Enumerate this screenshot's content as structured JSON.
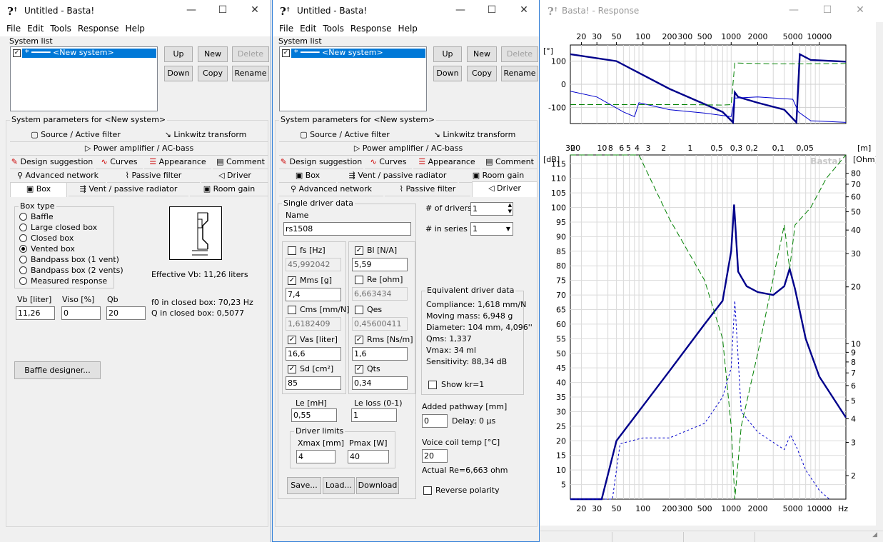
{
  "win1": {
    "title": "Untitled - Basta!",
    "menu": [
      "File",
      "Edit",
      "Tools",
      "Response",
      "Help"
    ],
    "system_list_label": "System list",
    "system_item": "<New system>",
    "buttons": {
      "up": "Up",
      "new": "New",
      "delete": "Delete",
      "down": "Down",
      "copy": "Copy",
      "rename": "Rename"
    },
    "params_label": "System parameters for <New system>",
    "tabs_row1": [
      "Source / Active filter",
      "Linkwitz transform"
    ],
    "tabs_row2": [
      "Power amplifier / AC-bass"
    ],
    "tabs_row3": [
      "Design suggestion",
      "Curves",
      "Appearance",
      "Comment"
    ],
    "tabs_row4": [
      "Advanced network",
      "Passive filter",
      "Driver"
    ],
    "tabs_row5": [
      "Box",
      "Vent / passive radiator",
      "Room gain"
    ],
    "box_type_label": "Box type",
    "box_types": [
      "Baffle",
      "Large closed box",
      "Closed box",
      "Vented box",
      "Bandpass box (1 vent)",
      "Bandpass box (2 vents)",
      "Measured response"
    ],
    "selected_box_type": "Vented box",
    "effective_vb": "Effective Vb: 11,26 liters",
    "vb_label": "Vb [liter]",
    "vb": "11,26",
    "viso_label": "Viso [%]",
    "viso": "0",
    "qb_label": "Qb",
    "qb": "20",
    "f0_closed": "f0 in closed box: 70,23 Hz",
    "q_closed": "Q  in closed box: 0,5077",
    "baffle_designer": "Baffle designer..."
  },
  "win2": {
    "title": "Untitled - Basta!",
    "menu": [
      "File",
      "Edit",
      "Tools",
      "Response",
      "Help"
    ],
    "system_list_label": "System list",
    "system_item": "<New system>",
    "buttons": {
      "up": "Up",
      "new": "New",
      "delete": "Delete",
      "down": "Down",
      "copy": "Copy",
      "rename": "Rename"
    },
    "params_label": "System parameters for <New system>",
    "tabs_row1": [
      "Source / Active filter",
      "Linkwitz transform"
    ],
    "tabs_row2": [
      "Power amplifier / AC-bass"
    ],
    "tabs_row3": [
      "Design suggestion",
      "Curves",
      "Appearance",
      "Comment"
    ],
    "tabs_row4": [
      "Box",
      "Vent / passive radiator",
      "Room gain"
    ],
    "tabs_row5": [
      "Advanced network",
      "Passive filter",
      "Driver"
    ],
    "single_driver_label": "Single driver data",
    "name_label": "Name",
    "name": "rs1508",
    "left_params": [
      {
        "label": "fs [Hz]",
        "value": "45,992042",
        "checked": false
      },
      {
        "label": "Mms [g]",
        "value": "7,4",
        "checked": true
      },
      {
        "label": "Cms [mm/N]",
        "value": "1,6182409",
        "checked": false
      },
      {
        "label": "Vas [liter]",
        "value": "16,6",
        "checked": true
      },
      {
        "label": "Sd [cm²]",
        "value": "85",
        "checked": true
      }
    ],
    "right_params": [
      {
        "label": "Bl [N/A]",
        "value": "5,59",
        "checked": true
      },
      {
        "label": "Re [ohm]",
        "value": "6,663434",
        "checked": false
      },
      {
        "label": "Qes",
        "value": "0,45600411",
        "checked": false
      },
      {
        "label": "Rms [Ns/m]",
        "value": "1,6",
        "checked": true
      },
      {
        "label": "Qts",
        "value": "0,34",
        "checked": true
      }
    ],
    "le_label": "Le [mH]",
    "le": "0,55",
    "leloss_label": "Le loss (0-1)",
    "leloss": "1",
    "limits_label": "Driver limits",
    "xmax_label": "Xmax [mm]",
    "xmax": "4",
    "pmax_label": "Pmax [W]",
    "pmax": "40",
    "save": "Save...",
    "load": "Load...",
    "download": "Download",
    "num_drivers_label": "# of drivers",
    "num_drivers": "1",
    "in_series_label": "# in series",
    "in_series": "1",
    "equiv_label": "Equivalent driver data",
    "equiv": [
      "Compliance: 1,618 mm/N",
      "Moving mass: 6,948 g",
      "Diameter: 104 mm, 4,096''",
      "Qms: 1,337",
      "Vmax: 34 ml",
      "Sensitivity: 88,34 dB"
    ],
    "show_kr": "Show kr=1",
    "added_pathway_label": "Added pathway [mm]",
    "added_pathway": "0",
    "delay": "Delay: 0 µs",
    "voice_coil_label": "Voice coil temp [°C]",
    "voice_coil": "20",
    "actual_re": "Actual Re=6,663 ohm",
    "reverse_polarity": "Reverse polarity"
  },
  "win3": {
    "title": "Basta! - Response",
    "watermark": "Basta!",
    "top_freq_ticks": [
      "20",
      "30",
      "50",
      "100",
      "200",
      "300",
      "500",
      "1000",
      "2000",
      "5000",
      "10000"
    ],
    "phase_unit": "[°]",
    "phase_ticks": [
      "100",
      "0",
      "-100"
    ],
    "dist_ticks": [
      "30",
      "20",
      "10",
      "8",
      "6",
      "5",
      "4",
      "3",
      "2",
      "1",
      "0,5",
      "0,3",
      "0,2",
      "0,1",
      "0,05"
    ],
    "dist_unit": "[m]",
    "db_unit": "[dB]",
    "db_ticks": [
      "115",
      "110",
      "105",
      "100",
      "95",
      "90",
      "85",
      "80",
      "75",
      "70",
      "65",
      "60",
      "55",
      "50",
      "45",
      "40",
      "35",
      "30",
      "25",
      "20",
      "15",
      "10",
      "5"
    ],
    "ohm_unit": "[Ohm]",
    "ohm_ticks": [
      "80",
      "70",
      "60",
      "50",
      "40",
      "30",
      "20",
      "10",
      "9",
      "8",
      "7",
      "6",
      "5",
      "4",
      "3",
      "2"
    ],
    "bottom_freq_ticks": [
      "20",
      "30",
      "50",
      "100",
      "200",
      "300",
      "500",
      "1000",
      "2000",
      "5000",
      "10000",
      "Hz"
    ]
  },
  "chart_data": [
    {
      "type": "line",
      "x_scale": "log",
      "xlim": [
        15,
        20000
      ],
      "ylim": [
        -170,
        170
      ],
      "ylabel": "[°]",
      "series": [
        {
          "color": "#00008b",
          "x": [
            15,
            50,
            100,
            200,
            400,
            800,
            1050,
            1100,
            1200,
            2000,
            4000,
            5500,
            6000,
            8000,
            20000
          ],
          "values": [
            130,
            100,
            40,
            -20,
            -70,
            -120,
            -165,
            -35,
            -55,
            -80,
            -110,
            -165,
            130,
            105,
            98
          ]
        },
        {
          "color": "#0000cc",
          "x": [
            15,
            30,
            60,
            80,
            90,
            200,
            500,
            1000,
            1100,
            2000,
            5000,
            5800,
            8000,
            20000
          ],
          "values": [
            -30,
            -55,
            -120,
            -140,
            -80,
            -110,
            -125,
            -140,
            -60,
            -55,
            -65,
            -120,
            -158,
            -165
          ]
        },
        {
          "color": "#008000",
          "x": [
            15,
            300,
            800,
            1000,
            1100,
            3000,
            6000,
            20000
          ],
          "values": [
            -88,
            -88,
            -90,
            -88,
            92,
            88,
            88,
            90
          ]
        }
      ]
    },
    {
      "type": "line",
      "x_scale": "log",
      "xlim": [
        15,
        20000
      ],
      "ylim": [
        0,
        118
      ],
      "ylabel": "[dB]",
      "y2label": "[Ohm]",
      "series": [
        {
          "color": "#00008b",
          "x": [
            15,
            34,
            50,
            100,
            200,
            500,
            800,
            1000,
            1080,
            1200,
            1500,
            2000,
            3000,
            4000,
            4600,
            5300,
            7000,
            10000,
            20000
          ],
          "values": [
            0,
            0,
            20,
            32,
            44,
            60,
            68,
            85,
            101,
            78,
            73,
            71,
            70,
            73,
            79,
            72,
            55,
            42,
            28
          ]
        },
        {
          "color": "#0000cc",
          "x": [
            15,
            45,
            55,
            100,
            200,
            500,
            800,
            1000,
            1100,
            1300,
            2000,
            4000,
            4700,
            5500,
            7000,
            10000,
            13000
          ],
          "values": [
            0,
            0,
            19,
            21,
            21,
            26,
            35,
            45,
            68,
            30,
            23,
            17,
            22,
            18,
            10,
            3,
            0
          ]
        },
        {
          "color": "#008000",
          "x": [
            15,
            90,
            200,
            500,
            800,
            1000,
            1100,
            1300,
            2000,
            4000,
            4600,
            5300,
            8000,
            12000,
            20000
          ],
          "values": [
            118,
            118,
            96,
            75,
            55,
            25,
            0,
            25,
            50,
            94,
            79,
            94,
            100,
            110,
            118
          ]
        }
      ]
    }
  ]
}
